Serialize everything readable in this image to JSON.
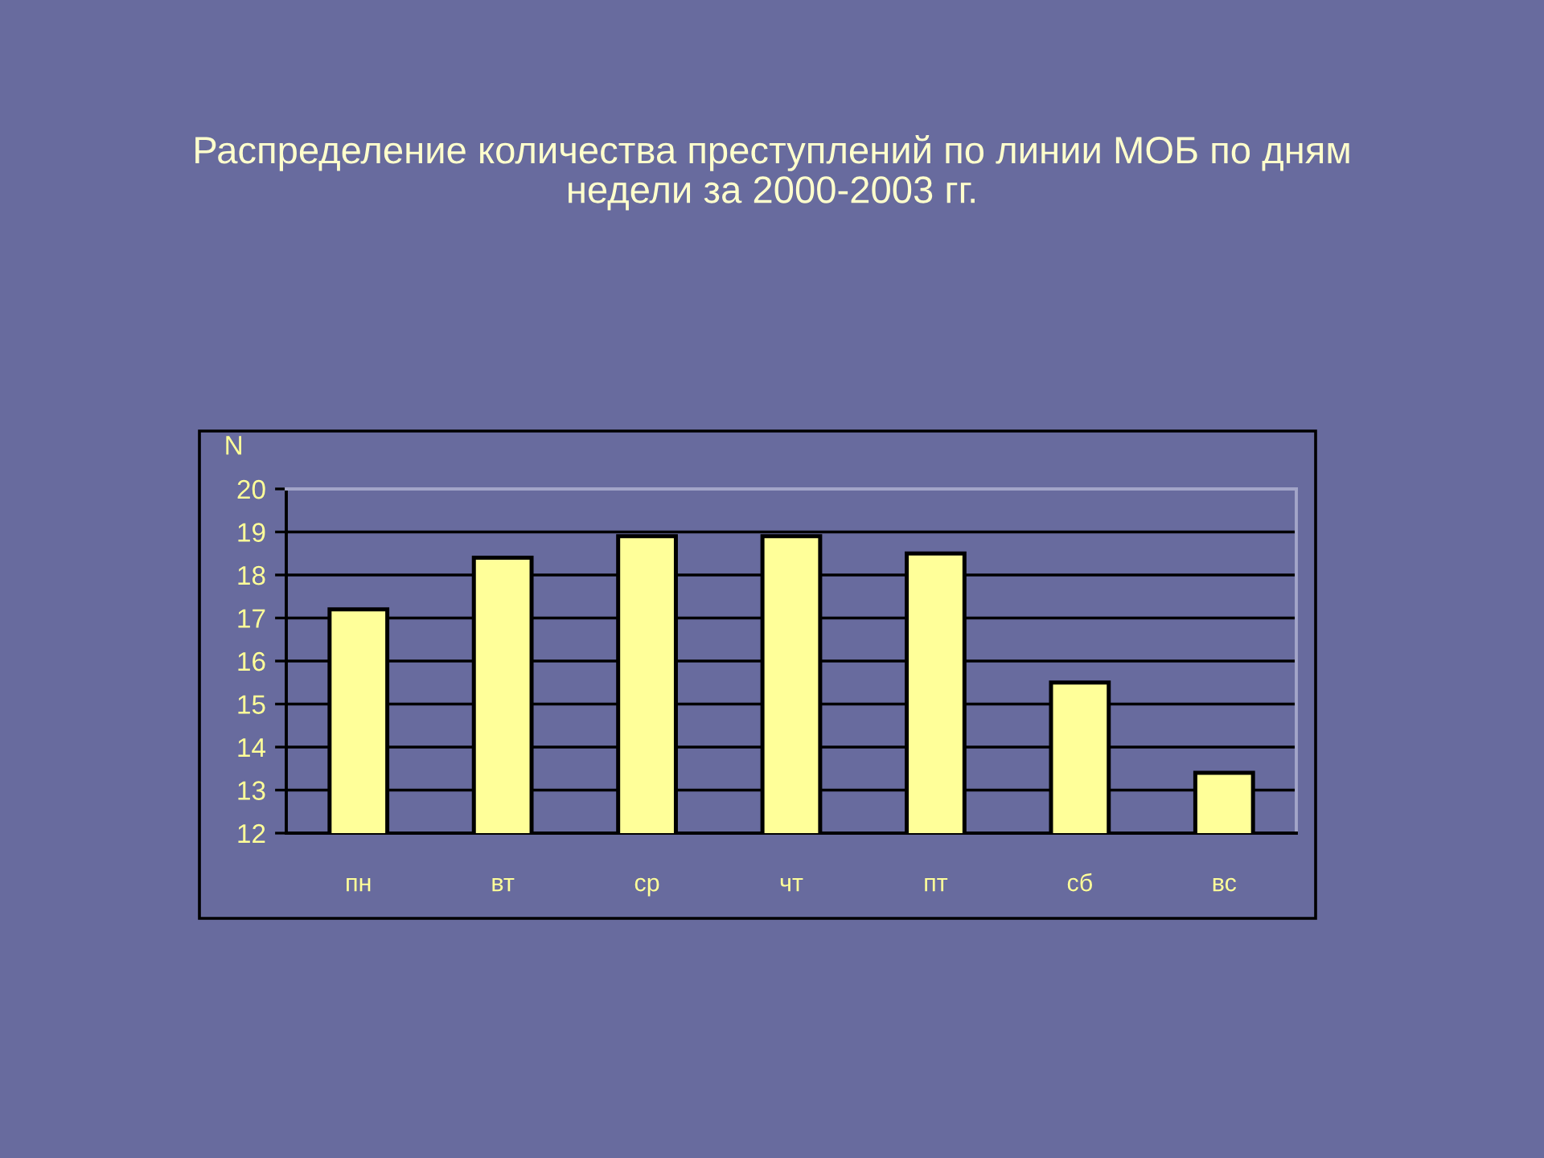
{
  "chart_data": {
    "type": "bar",
    "title": "Распределение количества преступлений по линии МОБ по дням\nнедели за 2000-2003 гг.",
    "ylabel": "N",
    "categories": [
      "пн",
      "вт",
      "ср",
      "чт",
      "пт",
      "сб",
      "вс"
    ],
    "values": [
      17.2,
      18.4,
      18.9,
      18.9,
      18.5,
      15.5,
      13.4
    ],
    "color": "#ffff99",
    "ylim": [
      12,
      20
    ],
    "yticks": [
      12,
      13,
      14,
      15,
      16,
      17,
      18,
      19,
      20
    ],
    "grid": "y"
  }
}
